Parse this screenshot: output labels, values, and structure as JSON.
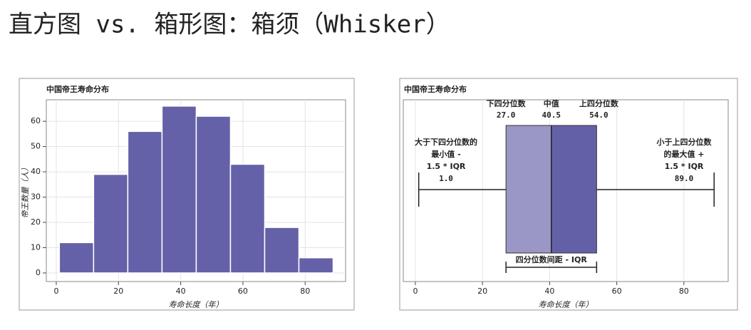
{
  "title": "直方图 vs. 箱形图：箱须（Whisker）",
  "chart_data": [
    {
      "type": "histogram",
      "title": "中国帝王寿命分布",
      "x_label": "寿命长度（年）",
      "y_label": "帝王数量（人）",
      "bins": [
        1,
        12,
        23,
        34,
        45,
        56,
        67,
        78,
        89
      ],
      "values": [
        12,
        39,
        56,
        66,
        62,
        43,
        18,
        6
      ],
      "color": "#6461a8",
      "xlim": [
        -3.2,
        93
      ],
      "xticks": [
        0,
        20,
        40,
        60,
        80
      ],
      "ylim": [
        -3.4,
        68.5
      ],
      "yticks": [
        0,
        10,
        20,
        30,
        40,
        50,
        60
      ],
      "grid": true
    },
    {
      "type": "box",
      "title": "中国帝王寿命分布",
      "x_label": "寿命长度（年）",
      "values": [
        1,
        27,
        40.5,
        54,
        89
      ],
      "value_labels": [
        "1.0",
        "27.0",
        "40.5",
        "54.0",
        "89.0"
      ],
      "annotations": [
        [
          "大于下四分位数的",
          "最小值 -",
          "1.5 * IQR"
        ],
        [
          "下四分位数"
        ],
        [
          "中值"
        ],
        [
          "上四分位数"
        ],
        [
          "小于上四分位数",
          "的最大值 +",
          "1.5 * IQR"
        ]
      ],
      "iqr_label": "四分位数间距 - IQR",
      "colors": [
        "#9a96c6",
        "#6460a8"
      ],
      "xlim": [
        -3.6,
        93.2
      ],
      "xticks": [
        0,
        20,
        40,
        60,
        80
      ],
      "grid": true
    }
  ]
}
